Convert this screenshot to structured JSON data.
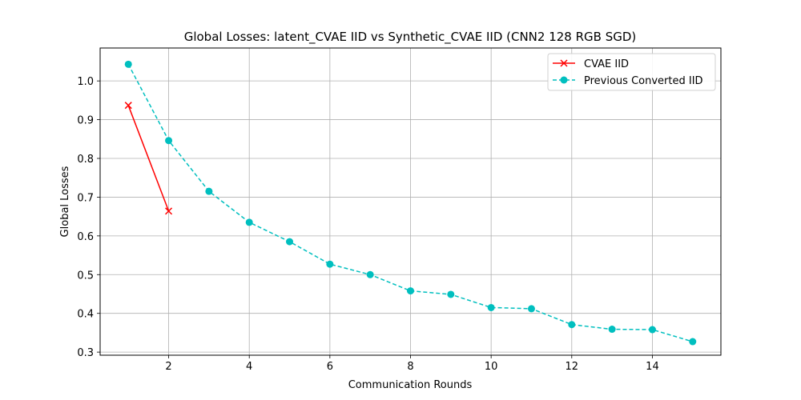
{
  "chart_data": {
    "type": "line",
    "title": "Global Losses: latent_CVAE IID vs Synthetic_CVAE IID (CNN2 128 RGB SGD)",
    "xlabel": "Communication Rounds",
    "ylabel": "Global Losses",
    "xlim": [
      0.3,
      15.7
    ],
    "ylim": [
      0.292,
      1.085
    ],
    "xticks": [
      2,
      4,
      6,
      8,
      10,
      12,
      14
    ],
    "yticks": [
      0.3,
      0.4,
      0.5,
      0.6,
      0.7,
      0.8,
      0.9,
      1.0
    ],
    "ytick_labels": [
      "0.3",
      "0.4",
      "0.5",
      "0.6",
      "0.7",
      "0.8",
      "0.9",
      "1.0"
    ],
    "grid": true,
    "legend_position": "top-right",
    "series": [
      {
        "name": "CVAE IID",
        "color": "#ff0000",
        "line_style": "solid",
        "marker": "x",
        "x": [
          1,
          2
        ],
        "values": [
          0.937,
          0.664
        ]
      },
      {
        "name": "Previous Converted IID",
        "color": "#00bfbf",
        "line_style": "dashed",
        "marker": "circle",
        "x": [
          1,
          2,
          3,
          4,
          5,
          6,
          7,
          8,
          9,
          10,
          11,
          12,
          13,
          14,
          15
        ],
        "values": [
          1.043,
          0.846,
          0.715,
          0.635,
          0.585,
          0.527,
          0.5,
          0.458,
          0.449,
          0.415,
          0.412,
          0.371,
          0.359,
          0.358,
          0.327
        ]
      }
    ]
  }
}
